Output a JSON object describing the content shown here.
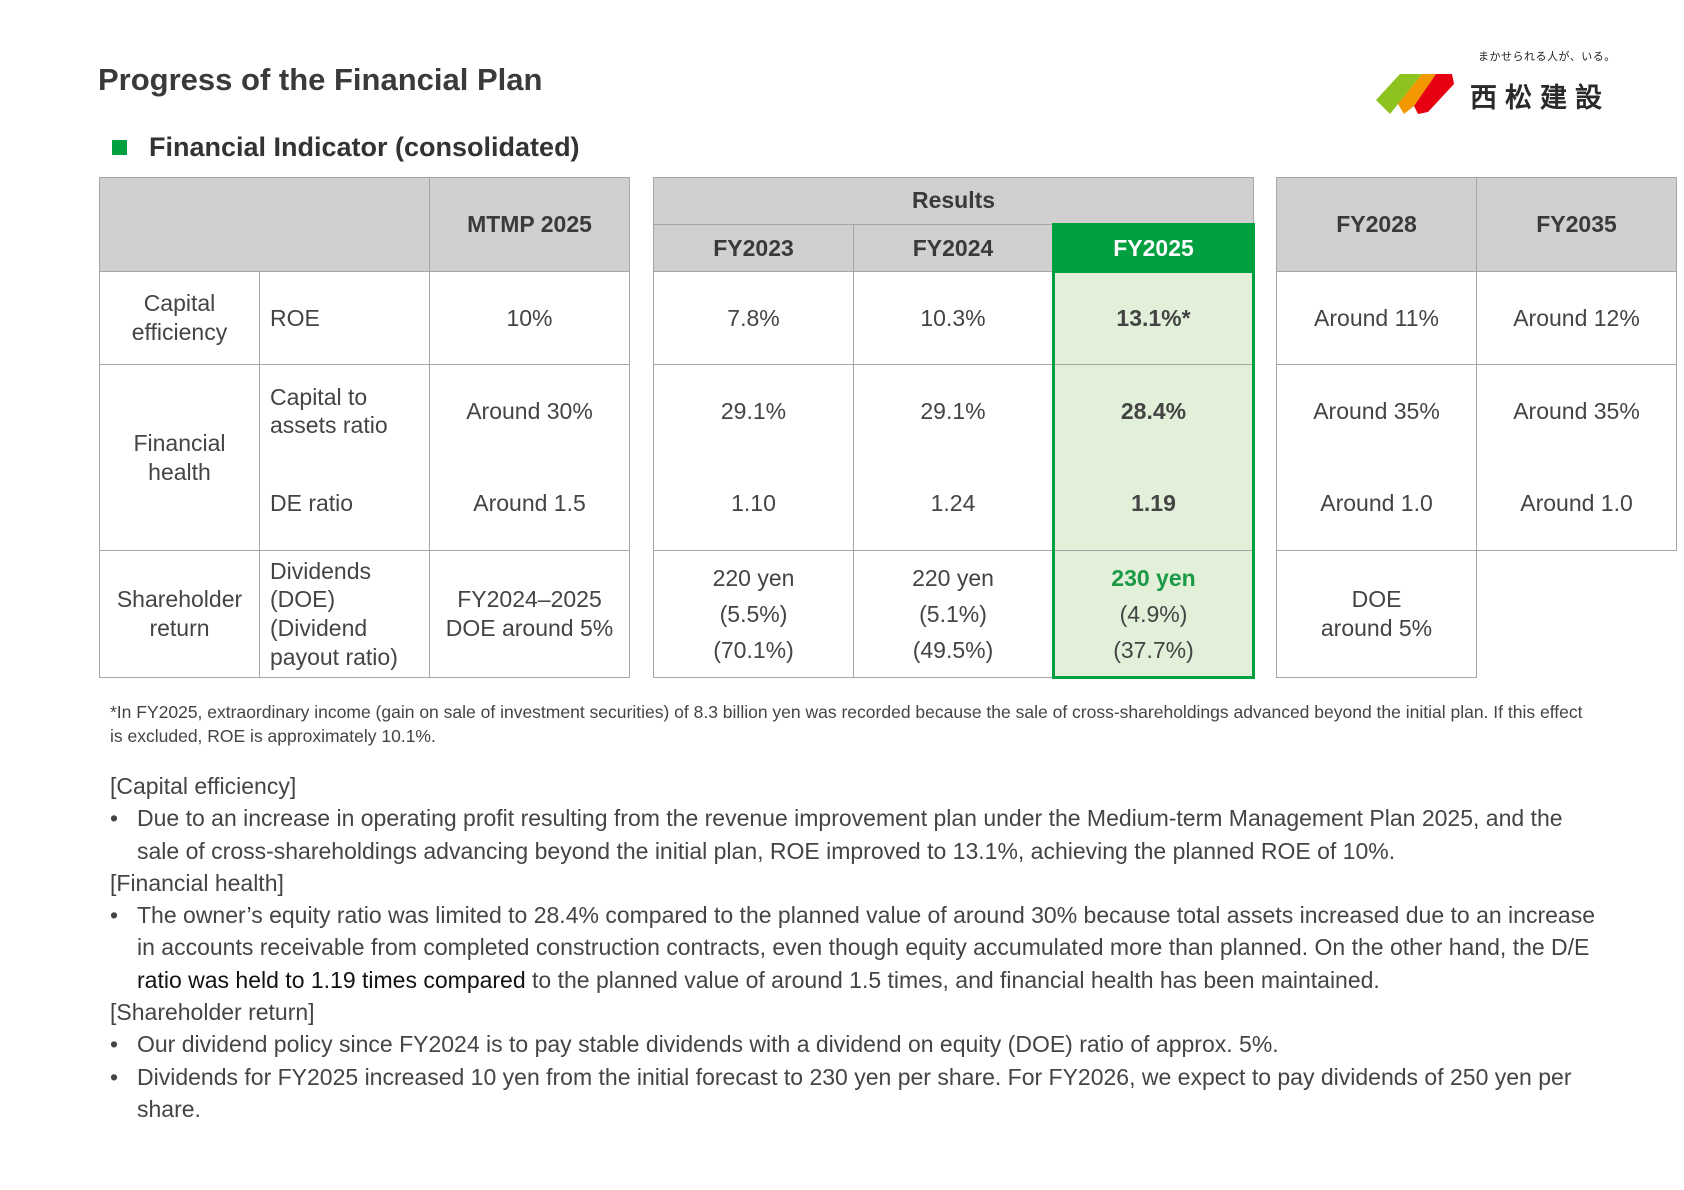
{
  "page": {
    "title": "Progress of the Financial Plan",
    "section_title": "Financial Indicator (consolidated)"
  },
  "logo": {
    "tagline": "まかせられる人が、いる。",
    "company": "西松建設",
    "colors": {
      "green": "#8dc21f",
      "red": "#e60012",
      "orange": "#f39800"
    }
  },
  "colors": {
    "accent_green": "#00a040",
    "highlight_fill": "#e2f0d9",
    "header_gray": "#d0d0d0"
  },
  "table": {
    "headers": {
      "mtmp": "MTMP 2025",
      "results": "Results",
      "fy2023": "FY2023",
      "fy2024": "FY2024",
      "fy2025": "FY2025",
      "fy2028": "FY2028",
      "fy2035": "FY2035"
    },
    "rows": {
      "roe": {
        "category": "Capital efficiency",
        "indicator": "ROE",
        "mtmp": "10%",
        "fy2023": "7.8%",
        "fy2024": "10.3%",
        "fy2025": "13.1%*",
        "fy2028": "Around 11%",
        "fy2035": "Around 12%"
      },
      "financial_health": {
        "category": "Financial health"
      },
      "capital_ratio": {
        "indicator": "Capital to assets ratio",
        "mtmp": "Around 30%",
        "fy2023": "29.1%",
        "fy2024": "29.1%",
        "fy2025": "28.4%",
        "fy2028": "Around 35%",
        "fy2035": "Around 35%"
      },
      "de_ratio": {
        "indicator": "DE ratio",
        "mtmp": "Around 1.5",
        "fy2023": "1.10",
        "fy2024": "1.24",
        "fy2025": "1.19",
        "fy2028": "Around 1.0",
        "fy2035": "Around 1.0"
      },
      "shareholder": {
        "category": "Shareholder return",
        "indicator": [
          "Dividends",
          "(DOE)",
          "(Dividend",
          "payout ratio)"
        ],
        "mtmp": [
          "FY2024–2025",
          "DOE around 5%"
        ],
        "fy2023": [
          "220 yen",
          "(5.5%)",
          "(70.1%)"
        ],
        "fy2024": [
          "220 yen",
          "(5.1%)",
          "(49.5%)"
        ],
        "fy2025": [
          "230 yen",
          "(4.9%)",
          "(37.7%)"
        ],
        "fy2028": [
          "DOE",
          "around 5%"
        ]
      }
    }
  },
  "footnote": "*In FY2025, extraordinary income (gain on sale of investment securities) of 8.3 billion yen was recorded because the sale of cross-shareholdings advanced beyond the initial plan. If this effect is excluded, ROE is approximately 10.1%.",
  "commentary": {
    "capital_efficiency": {
      "heading": "[Capital efficiency]",
      "bullet1": "Due to an increase in operating profit resulting from the revenue improvement plan under the Medium-term Management Plan 2025, and the sale of cross-shareholdings advancing beyond the initial plan, ROE improved to 13.1%, achieving the planned ROE of 10%."
    },
    "financial_health": {
      "heading": "[Financial health]",
      "bullet1_a": "The owner’s equity ratio was limited to 28.4% compared to the planned value of around 30% because total assets increased due to an increase in accounts receivable from completed construction contracts, even though equity accumulated more than planned. On the other hand, the D/E ",
      "bullet1_b": "ratio was held to 1.19 times compared",
      "bullet1_c": " to the planned value of around 1.5 times, and financial health has been maintained."
    },
    "shareholder_return": {
      "heading": "[Shareholder return]",
      "bullet1": "Our dividend policy since FY2024 is to pay stable dividends with a dividend on equity (DOE) ratio of approx. 5%.",
      "bullet2": "Dividends for FY2025 increased 10 yen from the initial forecast to 230 yen per share. For FY2026, we expect to pay dividends of 250 yen per share."
    }
  }
}
